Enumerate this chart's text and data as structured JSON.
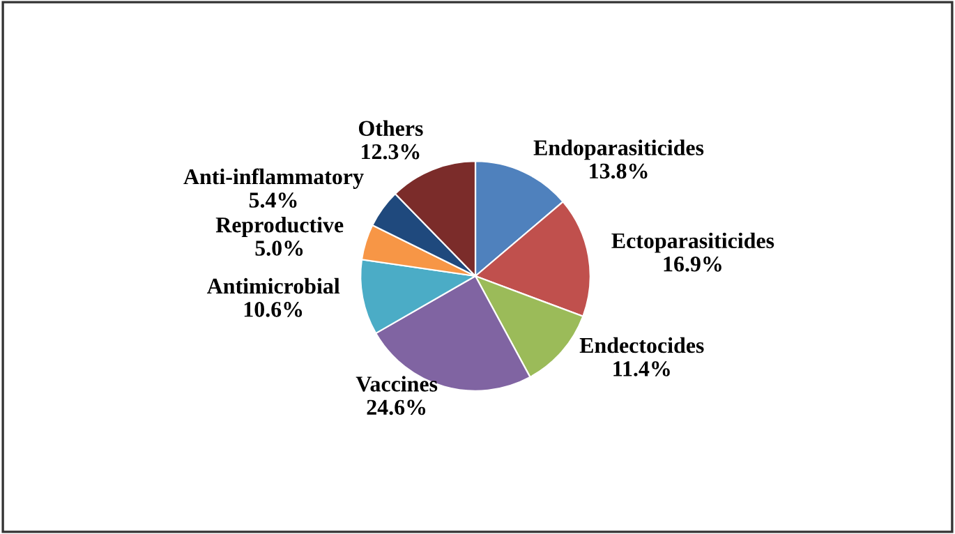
{
  "chart_data": {
    "type": "pie",
    "categories": [
      "Endoparasiticides",
      "Ectoparasiticides",
      "Endectocides",
      "Vaccines",
      "Antimicrobial",
      "Reproductive",
      "Anti-inflammatory",
      "Others"
    ],
    "values": [
      13.8,
      16.9,
      11.4,
      24.6,
      10.6,
      5.0,
      5.4,
      12.3
    ],
    "colors": [
      "#4f81bd",
      "#c0504d",
      "#9bbb59",
      "#8064a2",
      "#4bacc6",
      "#f79646",
      "#1f497d",
      "#7b2c2a"
    ],
    "value_labels": [
      "13.8%",
      "16.9%",
      "11.4%",
      "24.6%",
      "10.6%",
      "5.0%",
      "5.4%",
      "12.3%"
    ],
    "legend": false
  }
}
